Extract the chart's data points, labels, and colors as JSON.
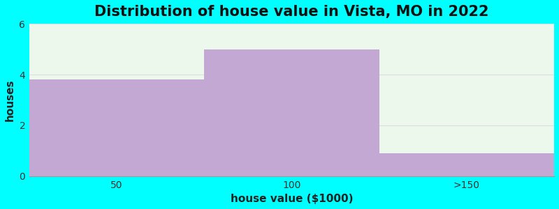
{
  "title": "Distribution of house value in Vista, MO in 2022",
  "xlabel": "house value ($1000)",
  "ylabel": "houses",
  "categories": [
    "50",
    "100",
    ">150"
  ],
  "values": [
    3.8,
    5.0,
    0.9
  ],
  "bar_color": "#C4A8D4",
  "bg_color": "#00FFFF",
  "plot_bg_color": "#EDF8ED",
  "ylim": [
    0,
    6
  ],
  "yticks": [
    0,
    2,
    4,
    6
  ],
  "bin_edges": [
    0,
    1,
    2,
    3
  ],
  "title_fontsize": 15,
  "label_fontsize": 11,
  "tick_fontsize": 10,
  "grid_color": "#DDDDDD"
}
